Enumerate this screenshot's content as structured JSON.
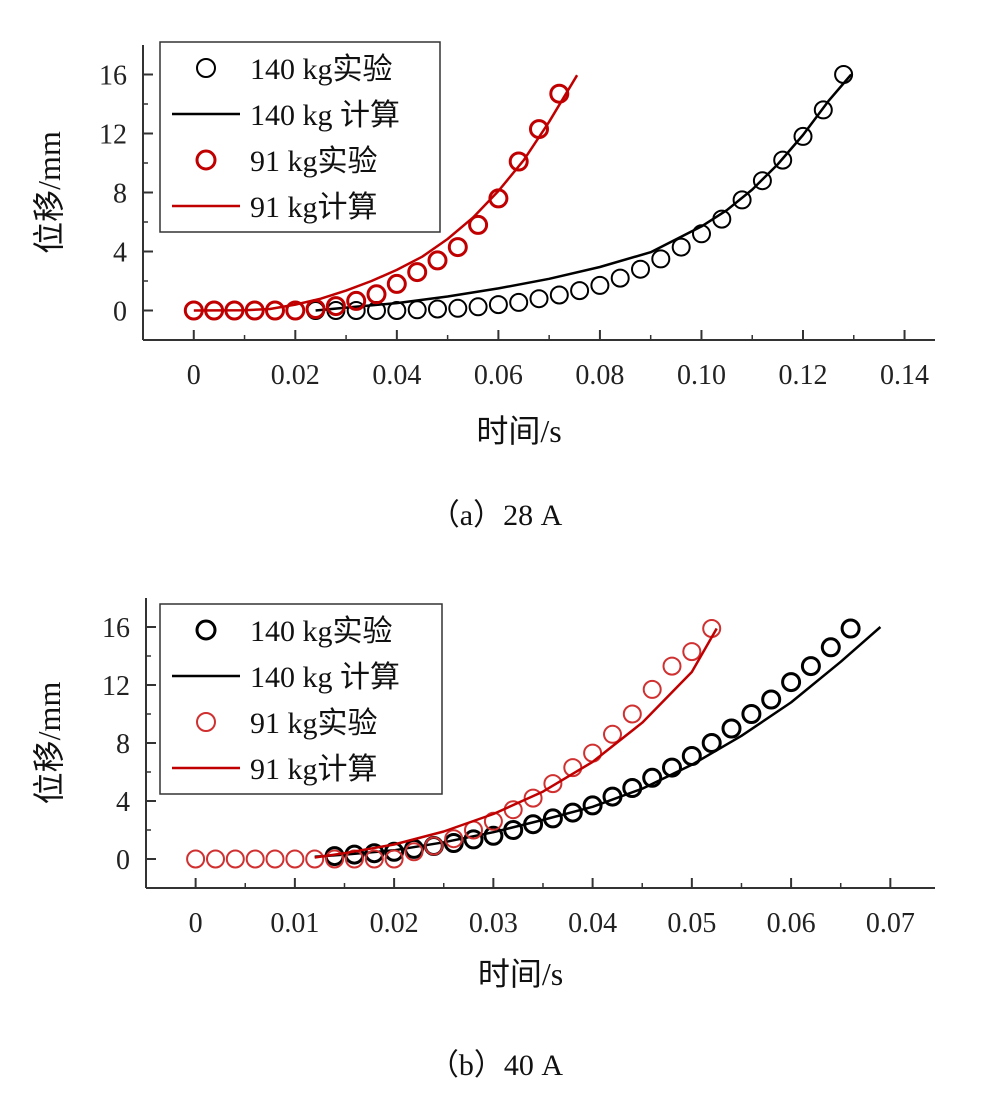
{
  "chart_data": [
    {
      "type": "line",
      "caption": "（a）28 A",
      "xlabel": "时间/s",
      "ylabel": "位移/mm",
      "xlim": [
        -0.01,
        0.146
      ],
      "ylim": [
        -2,
        18
      ],
      "xticks": [
        0,
        0.02,
        0.04,
        0.06,
        0.08,
        0.1,
        0.12,
        0.14
      ],
      "xtick_labels": [
        "0",
        "0.02",
        "0.04",
        "0.06",
        "0.08",
        "0.10",
        "0.12",
        "0.14"
      ],
      "yticks": [
        0,
        4,
        8,
        12,
        16
      ],
      "ytick_labels": [
        "0",
        "4",
        "8",
        "12",
        "16"
      ],
      "grid": false,
      "legend_position": "top-left",
      "series": [
        {
          "name": "140 kg实验",
          "kind": "scatter",
          "color": "#000000",
          "stroke_width": 2.0,
          "x": [
            0.024,
            0.028,
            0.032,
            0.036,
            0.04,
            0.044,
            0.048,
            0.052,
            0.056,
            0.06,
            0.064,
            0.068,
            0.072,
            0.076,
            0.08,
            0.084,
            0.088,
            0.092,
            0.096,
            0.1,
            0.104,
            0.108,
            0.112,
            0.116,
            0.12,
            0.124,
            0.128
          ],
          "y": [
            0,
            0,
            0,
            0,
            0,
            0.05,
            0.1,
            0.15,
            0.25,
            0.4,
            0.55,
            0.8,
            1.05,
            1.35,
            1.7,
            2.2,
            2.8,
            3.5,
            4.3,
            5.2,
            6.2,
            7.5,
            8.8,
            10.2,
            11.8,
            13.6,
            16.0
          ]
        },
        {
          "name": "140 kg 计算",
          "kind": "line",
          "color": "#000000",
          "stroke_width": 2.5,
          "x": [
            0.024,
            0.03,
            0.04,
            0.05,
            0.06,
            0.07,
            0.08,
            0.09,
            0.1,
            0.105,
            0.11,
            0.115,
            0.12,
            0.125,
            0.1295
          ],
          "y": [
            0,
            0.2,
            0.5,
            0.95,
            1.5,
            2.15,
            2.95,
            3.95,
            5.7,
            6.8,
            8.2,
            9.9,
            11.9,
            14.2,
            16.0
          ]
        },
        {
          "name": "91 kg实验",
          "kind": "scatter",
          "color": "#c00000",
          "stroke_width": 3.0,
          "x": [
            0,
            0.004,
            0.008,
            0.012,
            0.016,
            0.02,
            0.024,
            0.028,
            0.032,
            0.036,
            0.04,
            0.044,
            0.048,
            0.052,
            0.056,
            0.06,
            0.064,
            0.068,
            0.072
          ],
          "y": [
            0,
            0,
            0,
            0,
            0,
            0,
            0.1,
            0.3,
            0.65,
            1.1,
            1.8,
            2.6,
            3.4,
            4.3,
            5.8,
            7.6,
            10.1,
            12.3,
            14.7
          ]
        },
        {
          "name": "91 kg计算",
          "kind": "line",
          "color": "#c00000",
          "stroke_width": 2.5,
          "x": [
            0,
            0.01,
            0.015,
            0.02,
            0.025,
            0.03,
            0.035,
            0.04,
            0.045,
            0.05,
            0.055,
            0.06,
            0.065,
            0.07,
            0.0755
          ],
          "y": [
            0,
            0.02,
            0.1,
            0.4,
            0.8,
            1.35,
            2.0,
            2.75,
            3.65,
            4.85,
            6.3,
            8.1,
            10.2,
            12.8,
            15.95
          ]
        }
      ]
    },
    {
      "type": "line",
      "caption": "（b）40 A",
      "xlabel": "时间/s",
      "ylabel": "位移/mm",
      "xlim": [
        -0.005,
        0.0745
      ],
      "ylim": [
        -2,
        18
      ],
      "xticks": [
        0,
        0.01,
        0.02,
        0.03,
        0.04,
        0.05,
        0.06,
        0.07
      ],
      "xtick_labels": [
        "0",
        "0.01",
        "0.02",
        "0.03",
        "0.04",
        "0.05",
        "0.06",
        "0.07"
      ],
      "yticks": [
        0,
        4,
        8,
        12,
        16
      ],
      "ytick_labels": [
        "0",
        "4",
        "8",
        "12",
        "16"
      ],
      "grid": false,
      "legend_position": "top-left",
      "series": [
        {
          "name": "140 kg实验",
          "kind": "scatter",
          "color": "#000000",
          "stroke_width": 3.0,
          "x": [
            0.014,
            0.016,
            0.018,
            0.02,
            0.022,
            0.024,
            0.026,
            0.028,
            0.03,
            0.032,
            0.034,
            0.036,
            0.038,
            0.04,
            0.042,
            0.044,
            0.046,
            0.048,
            0.05,
            0.052,
            0.054,
            0.056,
            0.058,
            0.06,
            0.062,
            0.064,
            0.066
          ],
          "y": [
            0.2,
            0.3,
            0.4,
            0.5,
            0.7,
            0.9,
            1.1,
            1.35,
            1.6,
            2.0,
            2.4,
            2.8,
            3.2,
            3.7,
            4.3,
            4.9,
            5.6,
            6.3,
            7.1,
            8.0,
            9.0,
            10.0,
            11.0,
            12.2,
            13.3,
            14.6,
            15.9
          ]
        },
        {
          "name": "140 kg 计算",
          "kind": "line",
          "color": "#000000",
          "stroke_width": 2.5,
          "x": [
            0.012,
            0.015,
            0.02,
            0.025,
            0.03,
            0.035,
            0.04,
            0.045,
            0.05,
            0.055,
            0.06,
            0.065,
            0.069
          ],
          "y": [
            0.15,
            0.3,
            0.6,
            1.15,
            1.85,
            2.7,
            3.6,
            4.85,
            6.5,
            8.5,
            10.8,
            13.6,
            16.0
          ]
        },
        {
          "name": "91 kg实验",
          "kind": "scatter",
          "color": "#d03030",
          "stroke_width": 2.0,
          "x": [
            0,
            0.002,
            0.004,
            0.006,
            0.008,
            0.01,
            0.012,
            0.014,
            0.016,
            0.018,
            0.02,
            0.022,
            0.024,
            0.026,
            0.028,
            0.03,
            0.032,
            0.034,
            0.036,
            0.038,
            0.04,
            0.042,
            0.044,
            0.046,
            0.048,
            0.05,
            0.052
          ],
          "y": [
            0,
            0,
            0,
            0,
            0,
            0,
            0,
            0,
            0,
            0,
            0,
            0.5,
            0.9,
            1.4,
            2.0,
            2.6,
            3.4,
            4.2,
            5.2,
            6.3,
            7.3,
            8.6,
            10.0,
            11.7,
            13.3,
            14.3,
            15.9
          ]
        },
        {
          "name": "91 kg计算",
          "kind": "line",
          "color": "#c00000",
          "stroke_width": 2.5,
          "x": [
            0.012,
            0.015,
            0.02,
            0.025,
            0.03,
            0.035,
            0.04,
            0.045,
            0.05,
            0.0525
          ],
          "y": [
            0.1,
            0.4,
            1.0,
            1.9,
            3.1,
            4.65,
            6.7,
            9.4,
            12.9,
            15.9
          ]
        }
      ]
    }
  ]
}
